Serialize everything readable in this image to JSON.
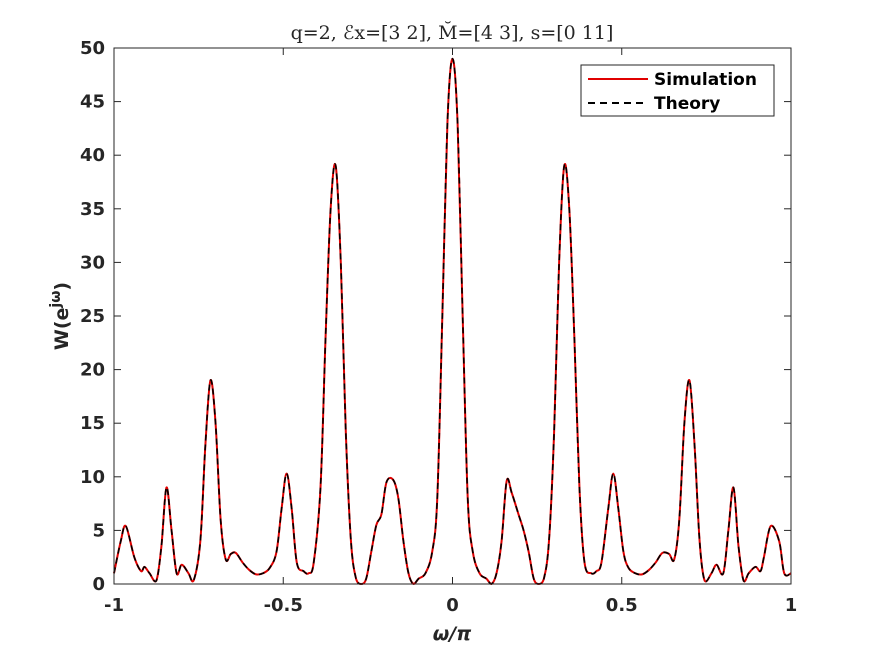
{
  "chart_data": {
    "type": "line",
    "title": "q=2, ℰx=[3 2], M̆=[4 3], s=[0 11]",
    "xlabel": "ω/π",
    "ylabel": "W(e^jω)",
    "ylabel_base": "W(e",
    "ylabel_sup": "jω",
    "ylabel_close": ")",
    "xlim": [
      -1,
      1
    ],
    "ylim": [
      0,
      50
    ],
    "xticks": [
      -1,
      -0.5,
      0,
      0.5,
      1
    ],
    "xtick_labels": [
      "-1",
      "-0.5",
      "0",
      "0.5",
      "1"
    ],
    "yticks": [
      0,
      5,
      10,
      15,
      20,
      25,
      30,
      35,
      40,
      45,
      50
    ],
    "ytick_labels": [
      "0",
      "5",
      "10",
      "15",
      "20",
      "25",
      "30",
      "35",
      "40",
      "45",
      "50"
    ],
    "grid": false,
    "legend_position": "top-right",
    "colors": {
      "simulation": "#e00000",
      "theory": "#000000"
    },
    "x": [
      -1.0,
      -0.98,
      -0.965,
      -0.94,
      -0.92,
      -0.91,
      -0.895,
      -0.875,
      -0.86,
      -0.845,
      -0.83,
      -0.815,
      -0.8,
      -0.78,
      -0.765,
      -0.745,
      -0.73,
      -0.715,
      -0.7,
      -0.685,
      -0.67,
      -0.655,
      -0.64,
      -0.62,
      -0.6,
      -0.58,
      -0.56,
      -0.54,
      -0.52,
      -0.505,
      -0.49,
      -0.475,
      -0.46,
      -0.44,
      -0.425,
      -0.41,
      -0.39,
      -0.375,
      -0.36,
      -0.345,
      -0.33,
      -0.315,
      -0.3,
      -0.285,
      -0.27,
      -0.255,
      -0.24,
      -0.225,
      -0.21,
      -0.195,
      -0.175,
      -0.16,
      -0.145,
      -0.13,
      -0.115,
      -0.1,
      -0.08,
      -0.06,
      -0.045,
      -0.03,
      -0.015,
      0.0,
      0.015,
      0.03,
      0.045,
      0.06,
      0.08,
      0.1,
      0.115,
      0.13,
      0.145,
      0.16,
      0.175,
      0.195,
      0.21,
      0.225,
      0.24,
      0.255,
      0.27,
      0.285,
      0.3,
      0.315,
      0.33,
      0.345,
      0.36,
      0.375,
      0.39,
      0.41,
      0.425,
      0.44,
      0.46,
      0.475,
      0.49,
      0.505,
      0.52,
      0.54,
      0.56,
      0.58,
      0.6,
      0.62,
      0.64,
      0.655,
      0.67,
      0.685,
      0.7,
      0.715,
      0.73,
      0.745,
      0.765,
      0.78,
      0.8,
      0.815,
      0.83,
      0.845,
      0.86,
      0.875,
      0.895,
      0.91,
      0.92,
      0.94,
      0.965,
      0.98,
      1.0
    ],
    "series": [
      {
        "name": "Simulation",
        "values": [
          1.0,
          4.0,
          5.4,
          2.5,
          1.2,
          1.6,
          1.0,
          0.3,
          3.5,
          9.0,
          5.0,
          1.0,
          1.8,
          1.0,
          0.3,
          4.0,
          13.0,
          19.0,
          15.0,
          6.0,
          2.3,
          2.8,
          2.9,
          2.0,
          1.3,
          0.9,
          1.0,
          1.5,
          3.0,
          7.0,
          10.3,
          7.0,
          2.0,
          1.2,
          1.0,
          2.0,
          9.0,
          23.0,
          35.0,
          39.0,
          30.0,
          14.0,
          4.0,
          0.5,
          0.0,
          0.5,
          3.0,
          5.5,
          6.5,
          9.5,
          9.7,
          8.0,
          4.0,
          1.0,
          0.0,
          0.5,
          1.0,
          3.0,
          8.0,
          25.0,
          43.0,
          49.0,
          43.0,
          25.0,
          8.0,
          3.0,
          1.0,
          0.5,
          0.0,
          1.0,
          4.0,
          9.6,
          8.5,
          6.5,
          5.0,
          3.0,
          0.5,
          0.0,
          0.5,
          4.0,
          14.0,
          30.0,
          39.0,
          35.0,
          23.0,
          9.0,
          2.0,
          1.0,
          1.2,
          2.0,
          7.0,
          10.3,
          7.0,
          3.0,
          1.5,
          1.0,
          0.9,
          1.3,
          2.0,
          2.9,
          2.8,
          2.3,
          6.0,
          15.0,
          19.0,
          13.0,
          4.0,
          0.3,
          1.0,
          1.8,
          1.0,
          5.0,
          9.0,
          3.5,
          0.3,
          1.0,
          1.6,
          1.2,
          2.5,
          5.4,
          4.0,
          1.0,
          1.0
        ]
      },
      {
        "name": "Theory",
        "values": [
          1.0,
          4.0,
          5.4,
          2.5,
          1.2,
          1.6,
          1.0,
          0.3,
          3.5,
          9.0,
          5.0,
          1.0,
          1.8,
          1.0,
          0.3,
          4.0,
          13.0,
          19.0,
          15.0,
          6.0,
          2.3,
          2.8,
          2.9,
          2.0,
          1.3,
          0.9,
          1.0,
          1.5,
          3.0,
          7.0,
          10.3,
          7.0,
          2.0,
          1.2,
          1.0,
          2.0,
          9.0,
          23.0,
          35.0,
          39.0,
          30.0,
          14.0,
          4.0,
          0.5,
          0.0,
          0.5,
          3.0,
          5.5,
          6.5,
          9.5,
          9.7,
          8.0,
          4.0,
          1.0,
          0.0,
          0.5,
          1.0,
          3.0,
          8.0,
          25.0,
          43.0,
          49.0,
          43.0,
          25.0,
          8.0,
          3.0,
          1.0,
          0.5,
          0.0,
          1.0,
          4.0,
          9.6,
          8.5,
          6.5,
          5.0,
          3.0,
          0.5,
          0.0,
          0.5,
          4.0,
          14.0,
          30.0,
          39.0,
          35.0,
          23.0,
          9.0,
          2.0,
          1.0,
          1.2,
          2.0,
          7.0,
          10.3,
          7.0,
          3.0,
          1.5,
          1.0,
          0.9,
          1.3,
          2.0,
          2.9,
          2.8,
          2.3,
          6.0,
          15.0,
          19.0,
          13.0,
          4.0,
          0.3,
          1.0,
          1.8,
          1.0,
          5.0,
          9.0,
          3.5,
          0.3,
          1.0,
          1.6,
          1.2,
          2.5,
          5.4,
          4.0,
          1.0,
          1.0
        ]
      }
    ]
  }
}
